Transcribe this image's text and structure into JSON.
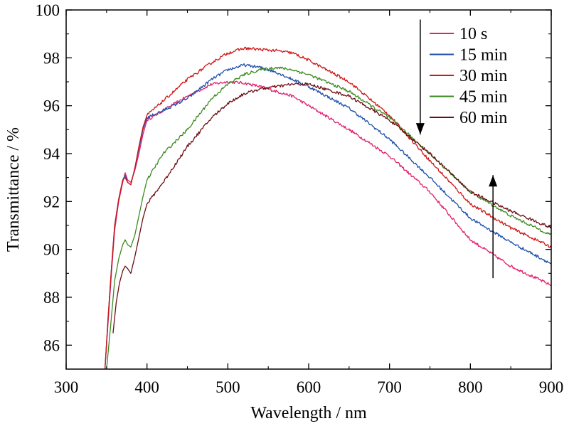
{
  "chart_data": {
    "type": "line",
    "title": "",
    "xlabel": "Wavelength / nm",
    "ylabel": "Transmittance / %",
    "xlim": [
      300,
      900
    ],
    "ylim": [
      85,
      100
    ],
    "xticks": [
      "300",
      "400",
      "500",
      "600",
      "700",
      "800",
      "900"
    ],
    "yticks": [
      "86",
      "88",
      "90",
      "92",
      "94",
      "96",
      "98",
      "100"
    ],
    "grid": false,
    "legend": "top-right",
    "series": [
      {
        "name": "10 s",
        "color": "#e0206e",
        "x": [
          348,
          352,
          356,
          360,
          365,
          370,
          373,
          376,
          380,
          385,
          390,
          395,
          400,
          420,
          450,
          480,
          500,
          520,
          540,
          560,
          580,
          600,
          650,
          700,
          750,
          800,
          850,
          900
        ],
        "y": [
          85,
          87.0,
          89.0,
          90.8,
          92.0,
          92.8,
          93.2,
          92.9,
          92.8,
          93.3,
          94.0,
          94.8,
          95.4,
          95.8,
          96.4,
          96.9,
          97.0,
          96.95,
          96.8,
          96.6,
          96.4,
          96.0,
          95.0,
          93.9,
          92.4,
          90.4,
          89.3,
          88.5
        ]
      },
      {
        "name": "15 min",
        "color": "#1f4fa8",
        "x": [
          348,
          352,
          356,
          360,
          365,
          370,
          373,
          376,
          380,
          385,
          390,
          395,
          400,
          420,
          450,
          480,
          500,
          520,
          540,
          560,
          580,
          600,
          650,
          700,
          750,
          800,
          850,
          900
        ],
        "y": [
          85,
          87.2,
          89.2,
          91.0,
          92.1,
          92.9,
          93.1,
          92.8,
          92.7,
          93.4,
          94.2,
          95.0,
          95.5,
          95.8,
          96.3,
          97.1,
          97.5,
          97.7,
          97.6,
          97.4,
          97.1,
          96.8,
          95.9,
          94.6,
          93.0,
          91.3,
          90.3,
          89.4
        ]
      },
      {
        "name": "30 min",
        "color": "#d01515",
        "x": [
          348,
          352,
          356,
          360,
          365,
          370,
          373,
          376,
          380,
          385,
          390,
          395,
          400,
          420,
          450,
          480,
          500,
          520,
          540,
          560,
          580,
          600,
          650,
          700,
          750,
          800,
          850,
          900
        ],
        "y": [
          85,
          87.2,
          89.2,
          91.0,
          92.1,
          92.9,
          93.0,
          92.8,
          92.7,
          93.4,
          94.3,
          95.1,
          95.6,
          96.2,
          97.1,
          97.8,
          98.2,
          98.4,
          98.35,
          98.3,
          98.2,
          97.9,
          97.0,
          95.6,
          93.7,
          91.9,
          90.9,
          90.1
        ]
      },
      {
        "name": "45 min",
        "color": "#3a8a1f",
        "x": [
          350,
          355,
          360,
          365,
          370,
          373,
          376,
          380,
          385,
          390,
          395,
          400,
          420,
          450,
          480,
          500,
          520,
          540,
          560,
          580,
          600,
          650,
          700,
          750,
          800,
          850,
          900
        ],
        "y": [
          85,
          86.8,
          88.7,
          89.6,
          90.2,
          90.4,
          90.2,
          90.1,
          90.6,
          91.4,
          92.2,
          92.9,
          94.0,
          95.0,
          96.3,
          96.9,
          97.3,
          97.5,
          97.6,
          97.5,
          97.3,
          96.6,
          95.5,
          94.0,
          92.4,
          91.4,
          90.6
        ]
      },
      {
        "name": "60 min",
        "color": "#6b0e12",
        "x": [
          358,
          362,
          366,
          370,
          373,
          376,
          380,
          385,
          390,
          395,
          400,
          420,
          450,
          480,
          500,
          520,
          540,
          560,
          580,
          600,
          650,
          700,
          750,
          800,
          850,
          900
        ],
        "y": [
          86.5,
          87.8,
          88.6,
          89.1,
          89.3,
          89.2,
          89.0,
          89.7,
          90.5,
          91.3,
          91.9,
          92.8,
          94.3,
          95.5,
          96.1,
          96.5,
          96.7,
          96.8,
          96.9,
          96.9,
          96.4,
          95.4,
          94.0,
          92.4,
          91.6,
          90.9
        ]
      }
    ],
    "annotations": [
      {
        "type": "arrow",
        "direction": "down",
        "x": 738,
        "y_from": 99.6,
        "y_to": 94.8
      },
      {
        "type": "arrow",
        "direction": "up",
        "x": 828,
        "y_from": 88.8,
        "y_to": 93.1
      }
    ]
  }
}
